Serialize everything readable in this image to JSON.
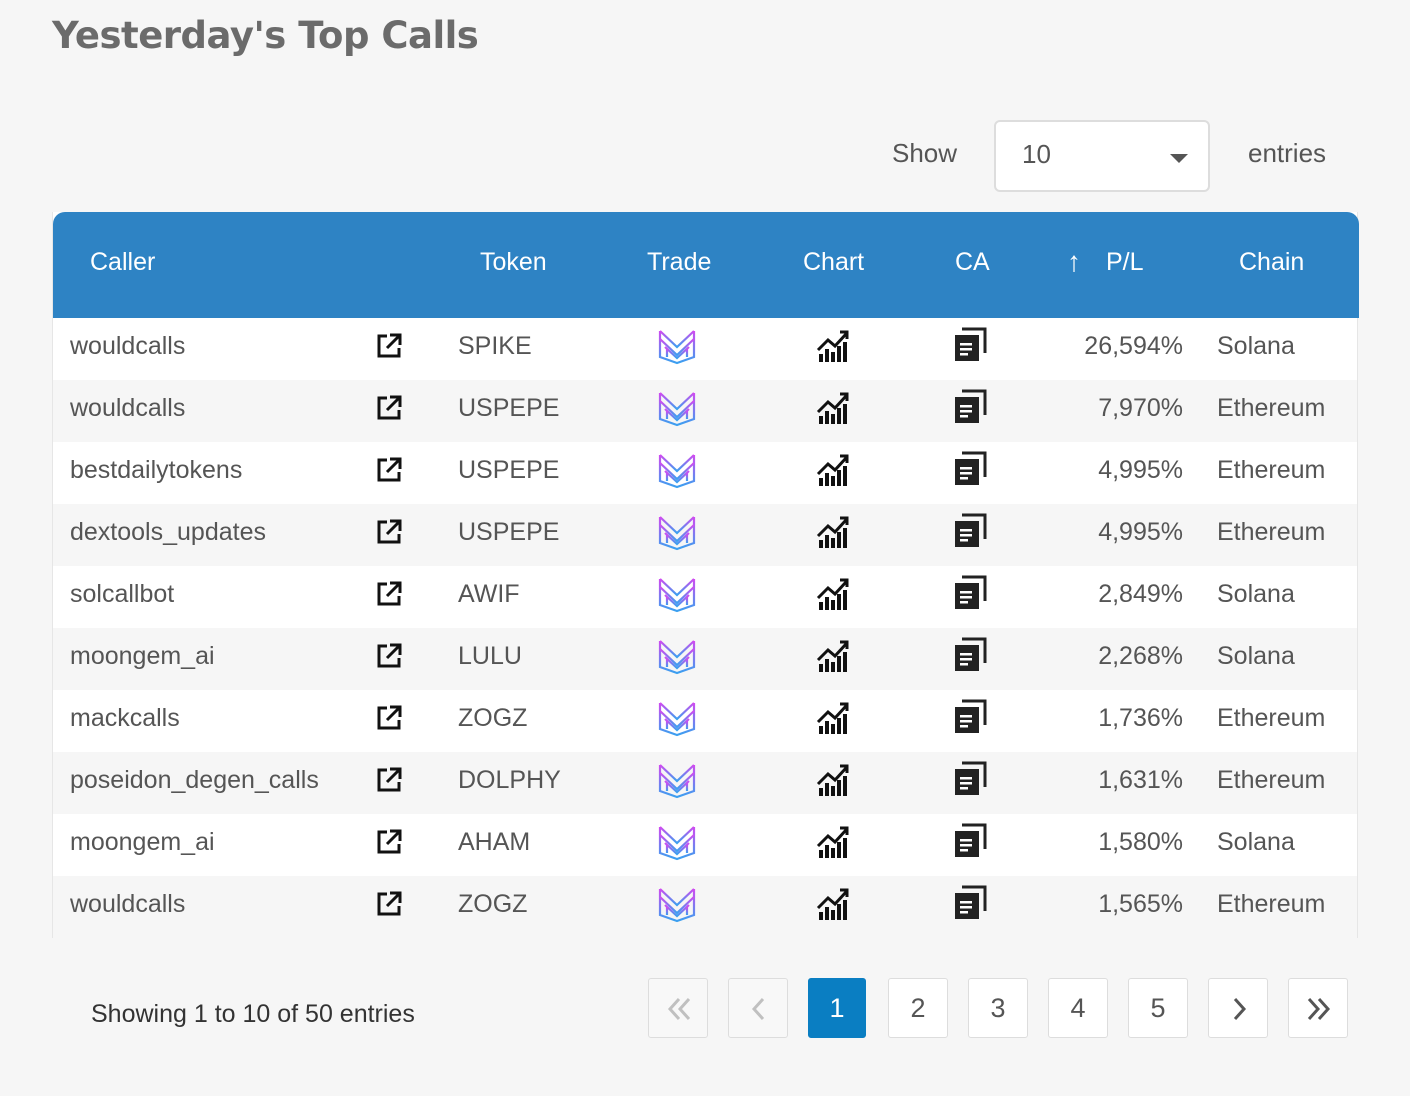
{
  "page": {
    "title": "Yesterday's Top Calls"
  },
  "length_menu": {
    "show_label": "Show",
    "selected": "10",
    "entries_label": "entries"
  },
  "table": {
    "headers": {
      "caller": "Caller",
      "token": "Token",
      "trade": "Trade",
      "chart": "Chart",
      "ca": "CA",
      "sort_arrow": "↑",
      "pl": "P/L",
      "chain": "Chain"
    },
    "rows": [
      {
        "caller": "wouldcalls",
        "token": "SPIKE",
        "pl": "26,594%",
        "chain": "Solana"
      },
      {
        "caller": "wouldcalls",
        "token": "USPEPE",
        "pl": "7,970%",
        "chain": "Ethereum"
      },
      {
        "caller": "bestdailytokens",
        "token": "USPEPE",
        "pl": "4,995%",
        "chain": "Ethereum"
      },
      {
        "caller": "dextools_updates",
        "token": "USPEPE",
        "pl": "4,995%",
        "chain": "Ethereum"
      },
      {
        "caller": "solcallbot",
        "token": "AWIF",
        "pl": "2,849%",
        "chain": "Solana"
      },
      {
        "caller": "moongem_ai",
        "token": "LULU",
        "pl": "2,268%",
        "chain": "Solana"
      },
      {
        "caller": "mackcalls",
        "token": "ZOGZ",
        "pl": "1,736%",
        "chain": "Ethereum"
      },
      {
        "caller": "poseidon_degen_calls",
        "token": "DOLPHY",
        "pl": "1,631%",
        "chain": "Ethereum"
      },
      {
        "caller": "moongem_ai",
        "token": "AHAM",
        "pl": "1,580%",
        "chain": "Solana"
      },
      {
        "caller": "wouldcalls",
        "token": "ZOGZ",
        "pl": "1,565%",
        "chain": "Ethereum"
      }
    ]
  },
  "footer": {
    "info": "Showing 1 to 10 of 50 entries",
    "pages": [
      "1",
      "2",
      "3",
      "4",
      "5"
    ],
    "current_page": "1"
  },
  "colors": {
    "header_bg": "#2e83c4",
    "active_page": "#0a7ec2",
    "trade_icon_top": "#d04bf0",
    "trade_icon_bottom": "#3aa0f0"
  },
  "icons": {
    "caller_link": "external-link-icon",
    "trade": "trade-logo-icon",
    "chart": "chart-trend-icon",
    "ca": "copy-icon"
  }
}
